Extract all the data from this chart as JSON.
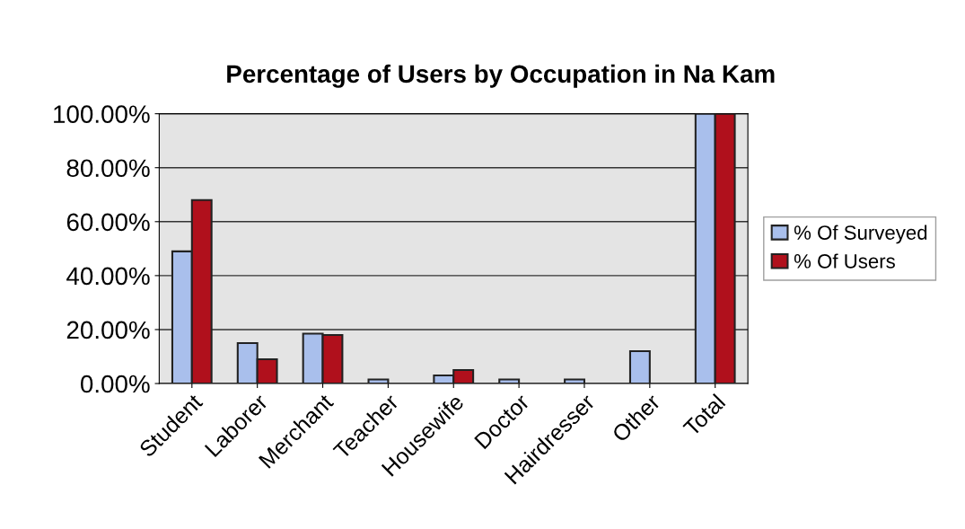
{
  "chart_data": {
    "type": "bar",
    "title": "Percentage of Users by Occupation in Na Kam",
    "categories": [
      "Student",
      "Laborer",
      "Merchant",
      "Teacher",
      "Housewife",
      "Doctor",
      "Hairdresser",
      "Other",
      "Total"
    ],
    "series": [
      {
        "name": "% Of Surveyed",
        "color": "#a9bfec",
        "values": [
          49,
          15,
          18.5,
          1.5,
          3,
          1.5,
          1.5,
          12,
          100
        ]
      },
      {
        "name": "% Of Users",
        "color": "#b0101c",
        "values": [
          68,
          9,
          18,
          null,
          5,
          null,
          null,
          null,
          100
        ]
      }
    ],
    "ylim": [
      0,
      100
    ],
    "yticks": [
      {
        "value": 0,
        "label": "0.00%"
      },
      {
        "value": 20,
        "label": "20.00%"
      },
      {
        "value": 40,
        "label": "40.00%"
      },
      {
        "value": 60,
        "label": "60.00%"
      },
      {
        "value": 80,
        "label": "80.00%"
      },
      {
        "value": 100,
        "label": "100.00%"
      }
    ],
    "grid": "y",
    "legend": "right"
  }
}
